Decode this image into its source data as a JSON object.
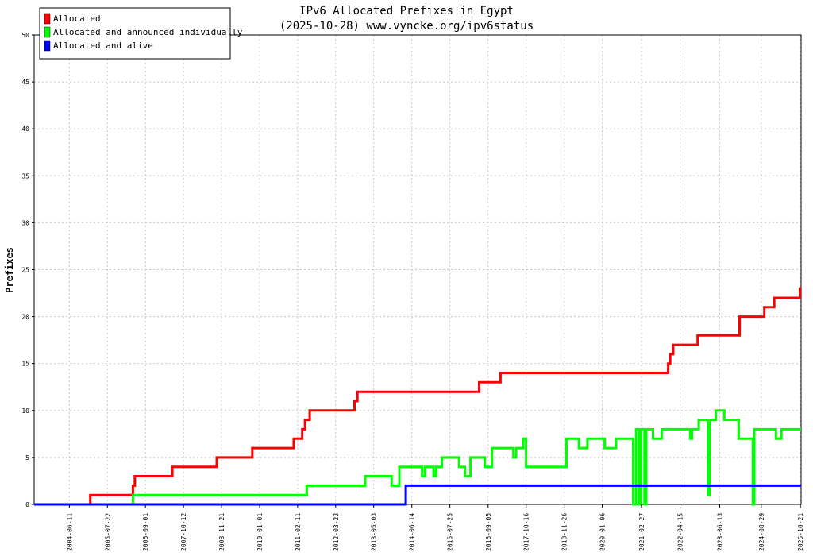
{
  "chart_data": {
    "type": "line",
    "title": "IPv6 Allocated Prefixes in Egypt",
    "subtitle": "(2025-10-28) www.vyncke.org/ipv6status",
    "ylabel": "Prefixes",
    "xlabel": "",
    "ylim": [
      0,
      50
    ],
    "yticks": [
      0,
      5,
      10,
      15,
      20,
      25,
      30,
      35,
      40,
      45,
      50
    ],
    "xlim": [
      "2003-06-01",
      "2025-10-28"
    ],
    "xtick_labels": [
      "2004-06-11",
      "2005-07-22",
      "2006-09-01",
      "2007-10-12",
      "2008-11-21",
      "2010-01-01",
      "2011-02-11",
      "2012-03-23",
      "2013-05-03",
      "2014-06-14",
      "2015-07-25",
      "2016-09-05",
      "2017-10-16",
      "2018-11-26",
      "2020-01-06",
      "2021-02-27",
      "2022-04-15",
      "2023-06-13",
      "2024-08-29",
      "2025-10-21"
    ],
    "grid": true,
    "legend_position": "top-left",
    "series": [
      {
        "name": "Allocated",
        "color": "#ff0000",
        "points": [
          [
            "2003-06-01",
            0
          ],
          [
            "2005-01-20",
            0
          ],
          [
            "2005-01-20",
            1
          ],
          [
            "2006-04-20",
            1
          ],
          [
            "2006-04-20",
            2
          ],
          [
            "2006-05-10",
            2
          ],
          [
            "2006-05-10",
            3
          ],
          [
            "2007-06-15",
            3
          ],
          [
            "2007-06-15",
            4
          ],
          [
            "2008-10-01",
            4
          ],
          [
            "2008-10-01",
            5
          ],
          [
            "2009-10-15",
            5
          ],
          [
            "2009-10-15",
            6
          ],
          [
            "2011-01-01",
            6
          ],
          [
            "2011-01-01",
            7
          ],
          [
            "2011-04-01",
            7
          ],
          [
            "2011-04-01",
            8
          ],
          [
            "2011-05-01",
            8
          ],
          [
            "2011-05-01",
            9
          ],
          [
            "2011-06-20",
            9
          ],
          [
            "2011-06-20",
            10
          ],
          [
            "2012-10-10",
            10
          ],
          [
            "2012-10-10",
            11
          ],
          [
            "2012-11-10",
            11
          ],
          [
            "2012-11-10",
            12
          ],
          [
            "2016-06-01",
            12
          ],
          [
            "2016-06-01",
            13
          ],
          [
            "2017-01-15",
            13
          ],
          [
            "2017-01-15",
            14
          ],
          [
            "2021-12-10",
            14
          ],
          [
            "2021-12-10",
            15
          ],
          [
            "2022-01-01",
            15
          ],
          [
            "2022-01-01",
            16
          ],
          [
            "2022-02-01",
            16
          ],
          [
            "2022-02-01",
            17
          ],
          [
            "2022-10-20",
            17
          ],
          [
            "2022-10-20",
            18
          ],
          [
            "2024-01-10",
            18
          ],
          [
            "2024-01-10",
            20
          ],
          [
            "2024-10-01",
            20
          ],
          [
            "2024-10-01",
            21
          ],
          [
            "2025-01-15",
            21
          ],
          [
            "2025-01-15",
            22
          ],
          [
            "2025-10-15",
            22
          ],
          [
            "2025-10-15",
            23
          ],
          [
            "2025-10-28",
            23
          ]
        ]
      },
      {
        "name": "Allocated and announced individually",
        "color": "#00ff00",
        "points": [
          [
            "2003-06-01",
            0
          ],
          [
            "2006-04-20",
            0
          ],
          [
            "2006-04-20",
            1
          ],
          [
            "2011-05-20",
            1
          ],
          [
            "2011-05-20",
            2
          ],
          [
            "2013-02-01",
            2
          ],
          [
            "2013-02-01",
            3
          ],
          [
            "2013-11-10",
            3
          ],
          [
            "2013-11-10",
            2
          ],
          [
            "2014-02-01",
            2
          ],
          [
            "2014-02-01",
            4
          ],
          [
            "2014-10-01",
            4
          ],
          [
            "2014-10-01",
            3
          ],
          [
            "2014-11-01",
            3
          ],
          [
            "2014-11-01",
            4
          ],
          [
            "2015-02-01",
            4
          ],
          [
            "2015-02-01",
            3
          ],
          [
            "2015-03-01",
            3
          ],
          [
            "2015-03-01",
            4
          ],
          [
            "2015-05-01",
            4
          ],
          [
            "2015-05-01",
            5
          ],
          [
            "2015-11-01",
            5
          ],
          [
            "2015-11-01",
            4
          ],
          [
            "2016-01-01",
            4
          ],
          [
            "2016-01-01",
            3
          ],
          [
            "2016-03-01",
            3
          ],
          [
            "2016-03-01",
            5
          ],
          [
            "2016-08-01",
            5
          ],
          [
            "2016-08-01",
            4
          ],
          [
            "2016-10-15",
            4
          ],
          [
            "2016-10-15",
            6
          ],
          [
            "2017-06-01",
            6
          ],
          [
            "2017-06-01",
            5
          ],
          [
            "2017-07-01",
            5
          ],
          [
            "2017-07-01",
            6
          ],
          [
            "2017-09-15",
            6
          ],
          [
            "2017-09-15",
            7
          ],
          [
            "2017-10-15",
            7
          ],
          [
            "2017-10-15",
            4
          ],
          [
            "2018-12-20",
            4
          ],
          [
            "2018-12-20",
            7
          ],
          [
            "2019-05-01",
            7
          ],
          [
            "2019-05-01",
            6
          ],
          [
            "2019-08-01",
            6
          ],
          [
            "2019-08-01",
            7
          ],
          [
            "2020-02-01",
            7
          ],
          [
            "2020-02-01",
            6
          ],
          [
            "2020-06-01",
            6
          ],
          [
            "2020-06-01",
            7
          ],
          [
            "2020-12-01",
            7
          ],
          [
            "2020-12-01",
            0
          ],
          [
            "2021-01-01",
            0
          ],
          [
            "2021-01-01",
            8
          ],
          [
            "2021-02-01",
            8
          ],
          [
            "2021-02-01",
            0
          ],
          [
            "2021-02-20",
            0
          ],
          [
            "2021-02-20",
            8
          ],
          [
            "2021-04-01",
            8
          ],
          [
            "2021-04-01",
            0
          ],
          [
            "2021-04-20",
            0
          ],
          [
            "2021-04-20",
            8
          ],
          [
            "2021-07-01",
            8
          ],
          [
            "2021-07-01",
            7
          ],
          [
            "2021-10-01",
            7
          ],
          [
            "2021-10-01",
            8
          ],
          [
            "2022-08-01",
            8
          ],
          [
            "2022-08-01",
            7
          ],
          [
            "2022-08-20",
            7
          ],
          [
            "2022-08-20",
            8
          ],
          [
            "2022-11-01",
            8
          ],
          [
            "2022-11-01",
            9
          ],
          [
            "2023-02-10",
            9
          ],
          [
            "2023-02-10",
            1
          ],
          [
            "2023-02-25",
            1
          ],
          [
            "2023-02-25",
            9
          ],
          [
            "2023-05-01",
            9
          ],
          [
            "2023-05-01",
            10
          ],
          [
            "2023-08-01",
            10
          ],
          [
            "2023-08-01",
            9
          ],
          [
            "2024-01-01",
            9
          ],
          [
            "2024-01-01",
            7
          ],
          [
            "2024-06-01",
            7
          ],
          [
            "2024-06-01",
            0
          ],
          [
            "2024-06-15",
            0
          ],
          [
            "2024-06-15",
            8
          ],
          [
            "2025-02-01",
            8
          ],
          [
            "2025-02-01",
            7
          ],
          [
            "2025-04-01",
            7
          ],
          [
            "2025-04-01",
            8
          ],
          [
            "2025-10-28",
            8
          ]
        ]
      },
      {
        "name": "Allocated and alive",
        "color": "#0000ff",
        "points": [
          [
            "2003-06-01",
            0
          ],
          [
            "2014-04-10",
            0
          ],
          [
            "2014-04-10",
            2
          ],
          [
            "2025-10-28",
            2
          ]
        ]
      }
    ]
  }
}
